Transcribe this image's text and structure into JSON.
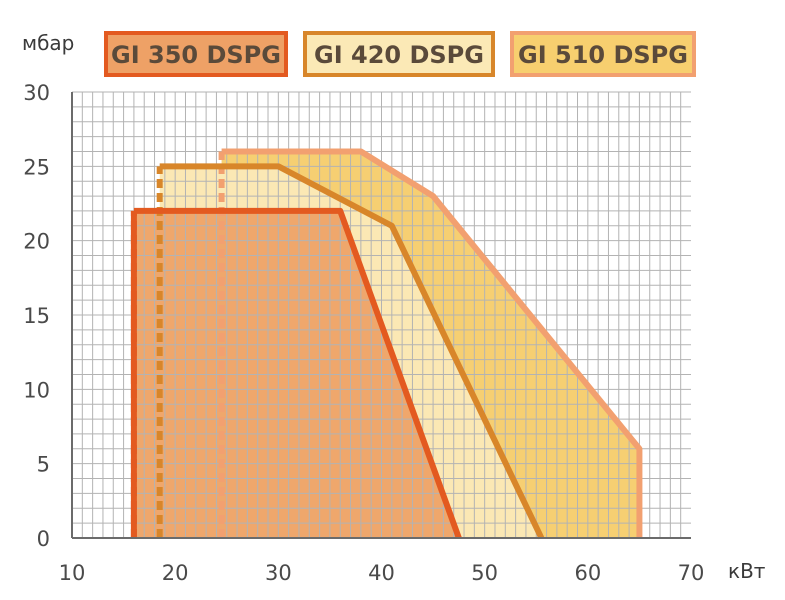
{
  "chart_data": {
    "type": "area",
    "xunit": "кВт",
    "yunit": "мбар",
    "xlim": [
      10,
      70
    ],
    "ylim": [
      0,
      30
    ],
    "xticks": [
      10,
      20,
      30,
      40,
      50,
      60,
      70
    ],
    "yticks": [
      0,
      5,
      10,
      15,
      20,
      25,
      30
    ],
    "grid": true,
    "legend_position": "top",
    "series": [
      {
        "name": "GI 510 DSPG",
        "stroke": "#f2a070",
        "fill": "#f6cf72",
        "legend_fill": "#f7cf6f",
        "points": [
          [
            24.5,
            0
          ],
          [
            24.5,
            26
          ],
          [
            38,
            26
          ],
          [
            45,
            23
          ],
          [
            65,
            6
          ],
          [
            65,
            0
          ]
        ]
      },
      {
        "name": "GI 420 DSPG",
        "stroke": "#d8862a",
        "fill": "#fbe8b4",
        "legend_fill": "#fbe9b6",
        "points": [
          [
            18.5,
            0
          ],
          [
            18.5,
            25
          ],
          [
            30,
            25
          ],
          [
            41,
            21
          ],
          [
            55.5,
            0
          ]
        ]
      },
      {
        "name": "GI 350 DSPG",
        "stroke": "#e35a20",
        "fill": "#efa76c",
        "legend_fill": "#eea166",
        "points": [
          [
            16,
            0
          ],
          [
            16,
            22
          ],
          [
            36,
            22
          ],
          [
            47.5,
            0
          ]
        ]
      }
    ]
  }
}
